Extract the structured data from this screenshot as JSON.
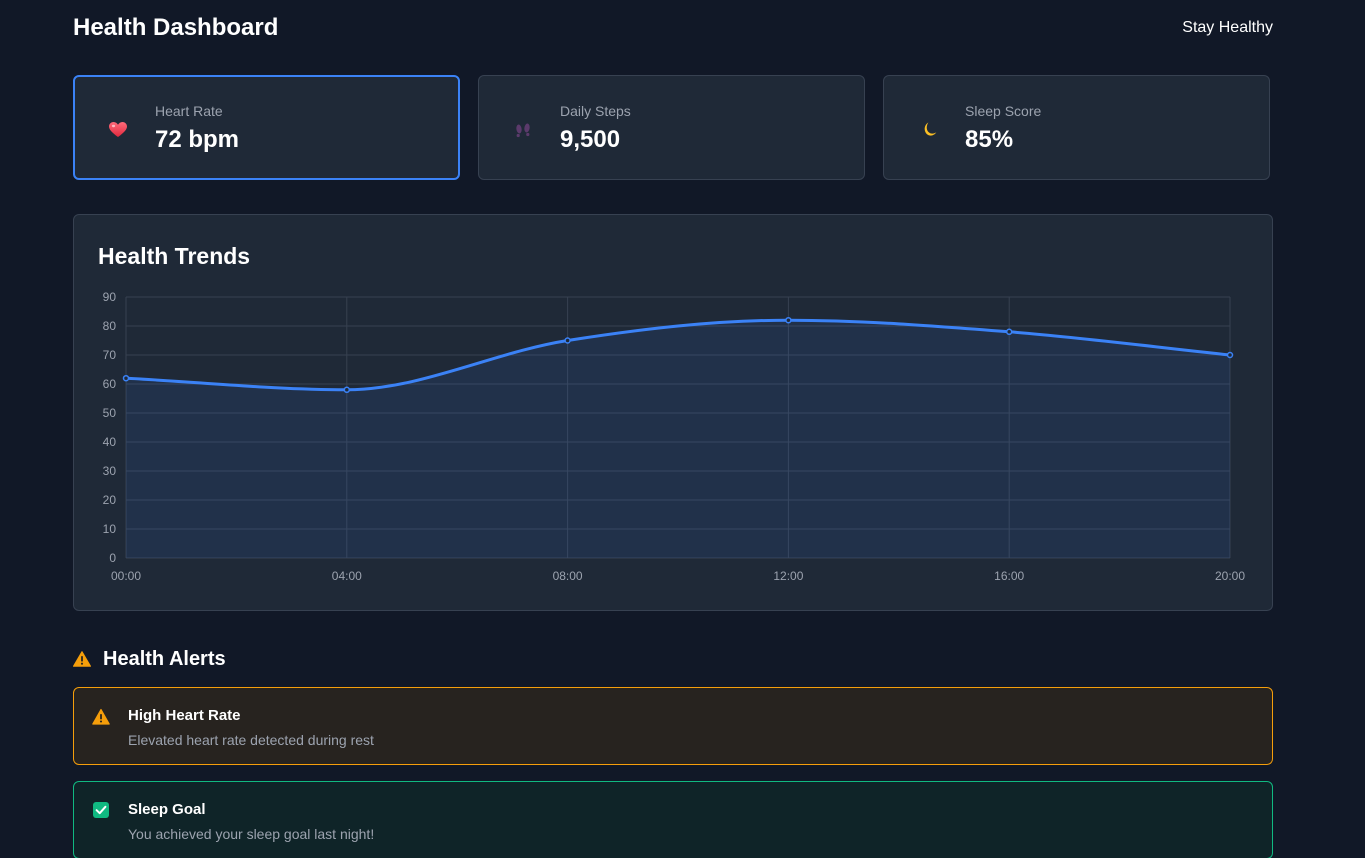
{
  "header": {
    "title": "Health Dashboard",
    "tagline": "Stay Healthy"
  },
  "stats": [
    {
      "label": "Heart Rate",
      "value": "72 bpm",
      "icon": "heart-icon",
      "active": true
    },
    {
      "label": "Daily Steps",
      "value": "9,500",
      "icon": "footprints-icon",
      "active": false
    },
    {
      "label": "Sleep Score",
      "value": "85%",
      "icon": "moon-icon",
      "active": false
    }
  ],
  "chart": {
    "title": "Health Trends"
  },
  "chart_data": {
    "type": "area",
    "x": [
      "00:00",
      "04:00",
      "08:00",
      "12:00",
      "16:00",
      "20:00"
    ],
    "series": [
      {
        "values": [
          62,
          58,
          75,
          82,
          78,
          70
        ]
      }
    ],
    "yticks": [
      0,
      10,
      20,
      30,
      40,
      50,
      60,
      70,
      80,
      90
    ],
    "ylim": [
      0,
      90
    ],
    "grid": true,
    "color": "#3b82f6"
  },
  "alerts": {
    "title": "Health Alerts",
    "items": [
      {
        "type": "warning",
        "title": "High Heart Rate",
        "message": "Elevated heart rate detected during rest"
      },
      {
        "type": "success",
        "title": "Sleep Goal",
        "message": "You achieved your sleep goal last night!"
      }
    ]
  },
  "colors": {
    "background": "#111827",
    "card": "#1f2937",
    "accent": "#3b82f6",
    "warning": "#f59e0b",
    "success": "#10b981"
  }
}
